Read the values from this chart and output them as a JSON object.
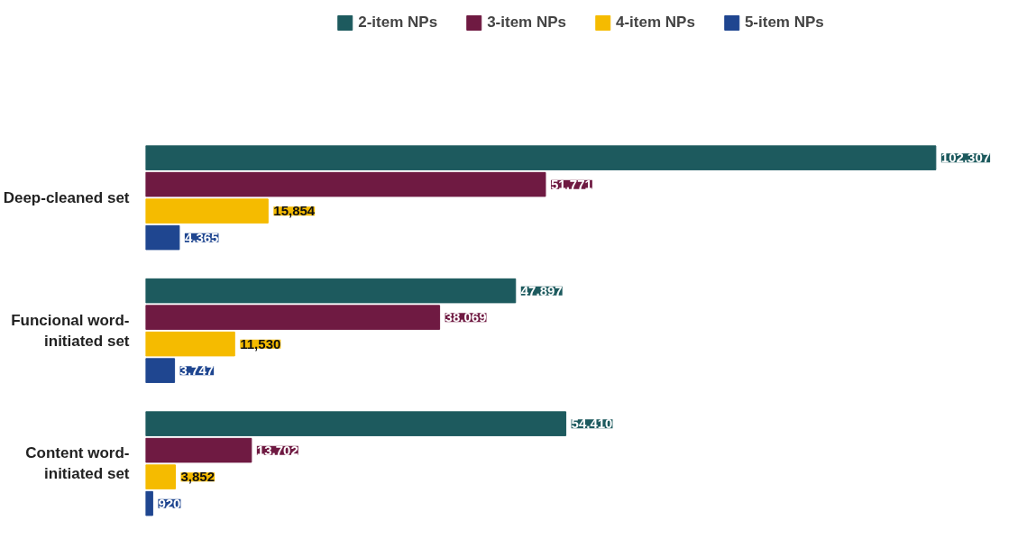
{
  "chart_data": {
    "type": "bar",
    "orientation": "horizontal",
    "categories": [
      "Deep-cleaned set",
      "Funcional word-\ninitiated set",
      "Content word-\ninitiated set"
    ],
    "series": [
      {
        "name": "2-item NPs",
        "color": "#1d5a5e",
        "values": [
          102307,
          47897,
          54410
        ],
        "value_labels": [
          "102,307",
          "47,897",
          "54,410"
        ]
      },
      {
        "name": "3-item NPs",
        "color": "#6f1a42",
        "values": [
          51771,
          38069,
          13702
        ],
        "value_labels": [
          "51,771",
          "38,069",
          "13,702"
        ]
      },
      {
        "name": "4-item NPs",
        "color": "#f5bb00",
        "values": [
          15854,
          11530,
          3852
        ],
        "value_labels": [
          "15,854",
          "11,530",
          "3,852"
        ]
      },
      {
        "name": "5-item NPs",
        "color": "#1f4690",
        "values": [
          4365,
          3747,
          920
        ],
        "value_labels": [
          "4,365",
          "3,747",
          "920"
        ]
      }
    ],
    "legend": "top",
    "grid": false
  }
}
